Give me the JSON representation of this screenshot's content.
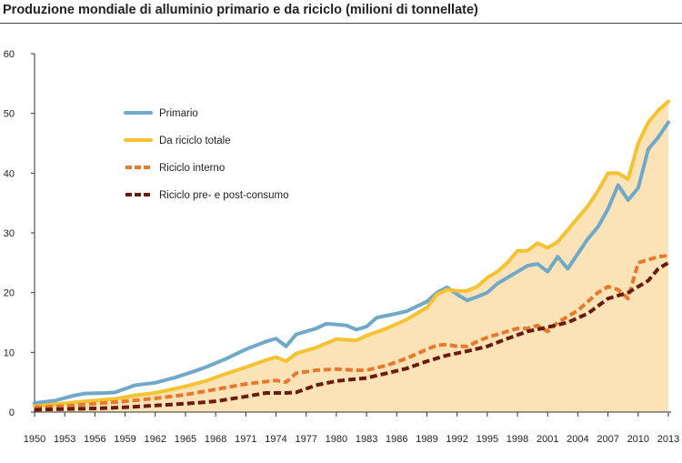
{
  "chart_data": {
    "type": "area",
    "title": "Produzione mondiale di alluminio primario e da riciclo (milioni di tonnellate)",
    "xlabel": "",
    "ylabel": "",
    "xlim": [
      1950,
      2013
    ],
    "ylim": [
      0,
      60
    ],
    "yticks": [
      0,
      10,
      20,
      30,
      40,
      50,
      60
    ],
    "xticks": [
      1950,
      1953,
      1956,
      1959,
      1962,
      1965,
      1968,
      1971,
      1974,
      1977,
      1980,
      1983,
      1986,
      1989,
      1992,
      1995,
      1998,
      2001,
      2004,
      2007,
      2010,
      2013
    ],
    "grid": false,
    "legend_position": "top-left",
    "series": [
      {
        "name": "Primario",
        "color": "#6fa8c9",
        "style": "solid",
        "points": [
          [
            1950,
            1.5
          ],
          [
            1952,
            1.9
          ],
          [
            1954,
            2.8
          ],
          [
            1955,
            3.1
          ],
          [
            1957,
            3.2
          ],
          [
            1958,
            3.3
          ],
          [
            1959,
            3.9
          ],
          [
            1960,
            4.5
          ],
          [
            1962,
            4.9
          ],
          [
            1964,
            5.8
          ],
          [
            1966,
            6.9
          ],
          [
            1967,
            7.5
          ],
          [
            1969,
            8.9
          ],
          [
            1971,
            10.5
          ],
          [
            1973,
            11.8
          ],
          [
            1974,
            12.3
          ],
          [
            1975,
            11.0
          ],
          [
            1976,
            13.0
          ],
          [
            1978,
            14.0
          ],
          [
            1979,
            14.8
          ],
          [
            1981,
            14.5
          ],
          [
            1982,
            13.8
          ],
          [
            1983,
            14.3
          ],
          [
            1984,
            15.8
          ],
          [
            1986,
            16.5
          ],
          [
            1987,
            16.9
          ],
          [
            1989,
            18.5
          ],
          [
            1990,
            20.0
          ],
          [
            1991,
            20.9
          ],
          [
            1992,
            19.7
          ],
          [
            1993,
            18.7
          ],
          [
            1994,
            19.3
          ],
          [
            1995,
            20.0
          ],
          [
            1996,
            21.5
          ],
          [
            1997,
            22.5
          ],
          [
            1998,
            23.5
          ],
          [
            1999,
            24.5
          ],
          [
            2000,
            24.8
          ],
          [
            2001,
            23.5
          ],
          [
            2002,
            26.0
          ],
          [
            2003,
            24.0
          ],
          [
            2004,
            26.5
          ],
          [
            2005,
            29.0
          ],
          [
            2006,
            31.0
          ],
          [
            2007,
            34.0
          ],
          [
            2008,
            38.0
          ],
          [
            2009,
            35.5
          ],
          [
            2010,
            37.5
          ],
          [
            2011,
            44.0
          ],
          [
            2012,
            46.0
          ],
          [
            2013,
            48.5
          ]
        ]
      },
      {
        "name": "Da riciclo totale",
        "color": "#f5c332",
        "style": "solid",
        "points": [
          [
            1950,
            1.0
          ],
          [
            1952,
            1.3
          ],
          [
            1955,
            1.8
          ],
          [
            1958,
            2.2
          ],
          [
            1960,
            2.8
          ],
          [
            1962,
            3.2
          ],
          [
            1965,
            4.3
          ],
          [
            1967,
            5.2
          ],
          [
            1969,
            6.4
          ],
          [
            1971,
            7.5
          ],
          [
            1973,
            8.7
          ],
          [
            1974,
            9.2
          ],
          [
            1975,
            8.5
          ],
          [
            1976,
            9.8
          ],
          [
            1978,
            10.8
          ],
          [
            1980,
            12.2
          ],
          [
            1982,
            12.0
          ],
          [
            1983,
            12.8
          ],
          [
            1985,
            14.0
          ],
          [
            1987,
            15.5
          ],
          [
            1989,
            17.5
          ],
          [
            1990,
            19.7
          ],
          [
            1991,
            20.5
          ],
          [
            1992,
            20.3
          ],
          [
            1993,
            20.3
          ],
          [
            1994,
            21.0
          ],
          [
            1995,
            22.5
          ],
          [
            1996,
            23.5
          ],
          [
            1997,
            25.0
          ],
          [
            1998,
            27.0
          ],
          [
            1999,
            27.0
          ],
          [
            2000,
            28.3
          ],
          [
            2001,
            27.5
          ],
          [
            2002,
            28.5
          ],
          [
            2003,
            30.5
          ],
          [
            2004,
            32.5
          ],
          [
            2005,
            34.5
          ],
          [
            2006,
            37.0
          ],
          [
            2007,
            40.0
          ],
          [
            2008,
            40.0
          ],
          [
            2009,
            39.0
          ],
          [
            2010,
            45.0
          ],
          [
            2011,
            48.5
          ],
          [
            2012,
            50.5
          ],
          [
            2013,
            52.0
          ]
        ]
      },
      {
        "name": "Riciclo interno",
        "color": "#e8782b",
        "style": "dashed",
        "points": [
          [
            1950,
            0.8
          ],
          [
            1953,
            1.0
          ],
          [
            1956,
            1.4
          ],
          [
            1959,
            1.8
          ],
          [
            1962,
            2.3
          ],
          [
            1965,
            2.9
          ],
          [
            1968,
            3.8
          ],
          [
            1971,
            4.7
          ],
          [
            1974,
            5.3
          ],
          [
            1975,
            5.0
          ],
          [
            1976,
            6.5
          ],
          [
            1978,
            7.0
          ],
          [
            1980,
            7.2
          ],
          [
            1982,
            7.0
          ],
          [
            1983,
            7.0
          ],
          [
            1985,
            7.8
          ],
          [
            1987,
            9.0
          ],
          [
            1989,
            10.5
          ],
          [
            1990,
            11.2
          ],
          [
            1991,
            11.3
          ],
          [
            1992,
            11.0
          ],
          [
            1993,
            11.0
          ],
          [
            1994,
            11.8
          ],
          [
            1995,
            12.5
          ],
          [
            1996,
            13.0
          ],
          [
            1997,
            13.5
          ],
          [
            1998,
            14.0
          ],
          [
            1999,
            14.0
          ],
          [
            2000,
            14.5
          ],
          [
            2001,
            13.5
          ],
          [
            2002,
            15.0
          ],
          [
            2003,
            16.0
          ],
          [
            2004,
            17.0
          ],
          [
            2005,
            18.5
          ],
          [
            2006,
            20.0
          ],
          [
            2007,
            21.0
          ],
          [
            2008,
            20.5
          ],
          [
            2009,
            19.0
          ],
          [
            2010,
            25.0
          ],
          [
            2011,
            25.5
          ],
          [
            2012,
            26.0
          ],
          [
            2013,
            26.2
          ]
        ]
      },
      {
        "name": "Riciclo pre- e post-consumo",
        "color": "#6b1a0e",
        "style": "dashed",
        "points": [
          [
            1950,
            0.4
          ],
          [
            1953,
            0.5
          ],
          [
            1956,
            0.6
          ],
          [
            1959,
            0.8
          ],
          [
            1962,
            1.1
          ],
          [
            1965,
            1.4
          ],
          [
            1968,
            1.8
          ],
          [
            1971,
            2.6
          ],
          [
            1973,
            3.2
          ],
          [
            1975,
            3.2
          ],
          [
            1976,
            3.3
          ],
          [
            1978,
            4.5
          ],
          [
            1980,
            5.2
          ],
          [
            1983,
            5.7
          ],
          [
            1985,
            6.5
          ],
          [
            1987,
            7.3
          ],
          [
            1989,
            8.5
          ],
          [
            1991,
            9.5
          ],
          [
            1993,
            10.2
          ],
          [
            1995,
            11.0
          ],
          [
            1997,
            12.3
          ],
          [
            1999,
            13.5
          ],
          [
            2001,
            14.2
          ],
          [
            2003,
            15.0
          ],
          [
            2005,
            16.5
          ],
          [
            2007,
            19.0
          ],
          [
            2009,
            20.0
          ],
          [
            2010,
            21.0
          ],
          [
            2011,
            22.0
          ],
          [
            2012,
            24.0
          ],
          [
            2013,
            25.0
          ]
        ]
      }
    ]
  }
}
